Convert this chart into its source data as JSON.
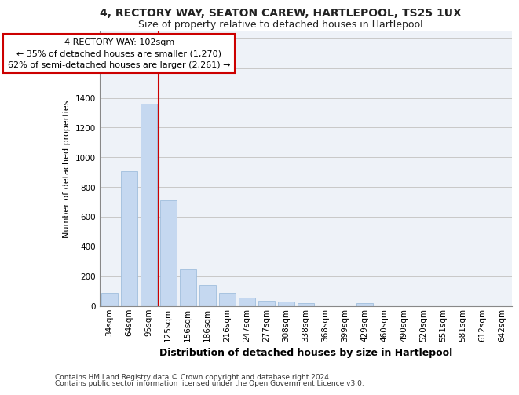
{
  "title_line1": "4, RECTORY WAY, SEATON CAREW, HARTLEPOOL, TS25 1UX",
  "title_line2": "Size of property relative to detached houses in Hartlepool",
  "xlabel": "Distribution of detached houses by size in Hartlepool",
  "ylabel": "Number of detached properties",
  "categories": [
    "34sqm",
    "64sqm",
    "95sqm",
    "125sqm",
    "156sqm",
    "186sqm",
    "216sqm",
    "247sqm",
    "277sqm",
    "308sqm",
    "338sqm",
    "368sqm",
    "399sqm",
    "429sqm",
    "460sqm",
    "490sqm",
    "520sqm",
    "551sqm",
    "581sqm",
    "612sqm",
    "642sqm"
  ],
  "values": [
    85,
    905,
    1360,
    710,
    245,
    140,
    85,
    53,
    32,
    30,
    18,
    0,
    0,
    20,
    0,
    0,
    0,
    0,
    0,
    0,
    0
  ],
  "bar_color": "#c5d8f0",
  "bar_edge_color": "#a0bedd",
  "vline_x_index": 2,
  "vline_color": "#cc0000",
  "annotation_line1": "4 RECTORY WAY: 102sqm",
  "annotation_line2": "← 35% of detached houses are smaller (1,270)",
  "annotation_line3": "62% of semi-detached houses are larger (2,261) →",
  "annotation_box_facecolor": "#ffffff",
  "annotation_box_edgecolor": "#cc0000",
  "ylim": [
    0,
    1850
  ],
  "yticks": [
    0,
    200,
    400,
    600,
    800,
    1000,
    1200,
    1400,
    1600,
    1800
  ],
  "footer_line1": "Contains HM Land Registry data © Crown copyright and database right 2024.",
  "footer_line2": "Contains public sector information licensed under the Open Government Licence v3.0.",
  "bg_color": "#eef2f8",
  "grid_color": "#c8c8c8",
  "title1_fontsize": 10,
  "title2_fontsize": 9,
  "ylabel_fontsize": 8,
  "xlabel_fontsize": 9,
  "tick_fontsize": 7.5,
  "annot_fontsize": 8,
  "footer_fontsize": 6.5
}
